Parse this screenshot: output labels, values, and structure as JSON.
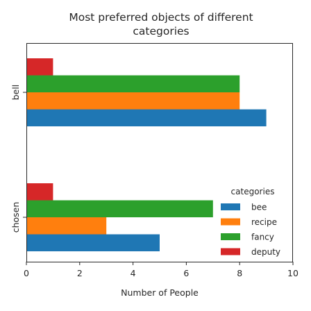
{
  "chart_data": {
    "type": "bar",
    "orientation": "horizontal",
    "title": [
      "Most preferred objects of different",
      "categories"
    ],
    "xlabel": "Number of People",
    "ylabel": "",
    "xlim": [
      0,
      10
    ],
    "xticks": [
      "0",
      "2",
      "4",
      "6",
      "8",
      "10"
    ],
    "grid": false,
    "categories": [
      "bell",
      "chosen"
    ],
    "series": [
      {
        "name": "bee",
        "color": "#1f77b4",
        "values": [
          9,
          5
        ]
      },
      {
        "name": "recipe",
        "color": "#ff7f0e",
        "values": [
          8,
          3
        ]
      },
      {
        "name": "fancy",
        "color": "#2ca02c",
        "values": [
          8,
          7
        ]
      },
      {
        "name": "deputy",
        "color": "#d62728",
        "values": [
          1,
          1
        ]
      }
    ],
    "legend": {
      "title": "categories",
      "placement": "lower-right"
    }
  }
}
